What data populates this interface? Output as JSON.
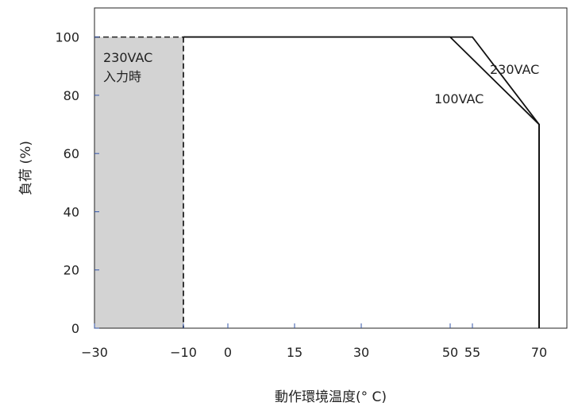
{
  "chart_data": {
    "type": "line",
    "title": "",
    "xlabel": "動作環境温度(° C)",
    "ylabel": "負荷 (%)",
    "x_ticks": [
      "−30",
      "−10",
      "0",
      "15",
      "30",
      "50",
      "55",
      "70"
    ],
    "x_tick_values": [
      -30,
      -10,
      0,
      15,
      30,
      50,
      55,
      70
    ],
    "y_ticks": [
      "0",
      "20",
      "40",
      "60",
      "80",
      "100"
    ],
    "y_tick_values": [
      0,
      20,
      40,
      60,
      80,
      100
    ],
    "ylim": [
      0,
      110
    ],
    "grid": false,
    "series": [
      {
        "name": "230VAC",
        "x": [
          -30,
          55,
          70,
          70
        ],
        "y": [
          100,
          100,
          70,
          0
        ]
      },
      {
        "name": "100VAC",
        "x": [
          -10,
          50,
          70,
          70
        ],
        "y": [
          100,
          100,
          70,
          0
        ]
      }
    ],
    "shaded_region": {
      "x_range": [
        -30,
        -10
      ],
      "y_range": [
        0,
        100
      ],
      "label_lines": [
        "230VAC",
        "入力時"
      ],
      "color": "#d3d3d3"
    },
    "series_labels": [
      "230VAC",
      "100VAC"
    ]
  }
}
